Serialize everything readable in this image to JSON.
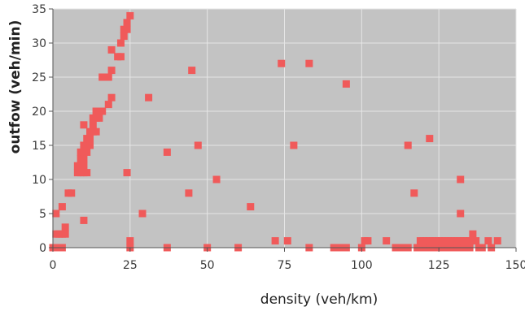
{
  "chart_data": {
    "type": "scatter",
    "xlabel": "density (veh/km)",
    "ylabel": "outfow (veh/min)",
    "xlim": [
      0,
      150
    ],
    "ylim": [
      0,
      35
    ],
    "xticks": [
      0,
      25,
      50,
      75,
      100,
      125,
      150
    ],
    "yticks": [
      0,
      5,
      10,
      15,
      20,
      25,
      30,
      35
    ],
    "grid": true,
    "colors": {
      "plot_bg": "#c3c3c3",
      "marker": "#f05a5a",
      "grid": "#e6e6e6"
    },
    "series": [
      {
        "points": [
          [
            0,
            0
          ],
          [
            1,
            0
          ],
          [
            2,
            0
          ],
          [
            3,
            0
          ],
          [
            1,
            2
          ],
          [
            2,
            2
          ],
          [
            3,
            2
          ],
          [
            4,
            2
          ],
          [
            4,
            3
          ],
          [
            1,
            5
          ],
          [
            3,
            6
          ],
          [
            5,
            8
          ],
          [
            6,
            8
          ],
          [
            10,
            4
          ],
          [
            8,
            11
          ],
          [
            9,
            11
          ],
          [
            10,
            11
          ],
          [
            11,
            11
          ],
          [
            8,
            12
          ],
          [
            9,
            12
          ],
          [
            10,
            12
          ],
          [
            9,
            13
          ],
          [
            10,
            13
          ],
          [
            9,
            14
          ],
          [
            10,
            14
          ],
          [
            11,
            14
          ],
          [
            10,
            15
          ],
          [
            11,
            15
          ],
          [
            12,
            15
          ],
          [
            11,
            16
          ],
          [
            12,
            16
          ],
          [
            12,
            17
          ],
          [
            13,
            17
          ],
          [
            14,
            17
          ],
          [
            10,
            18
          ],
          [
            13,
            18
          ],
          [
            13,
            19
          ],
          [
            14,
            19
          ],
          [
            15,
            19
          ],
          [
            14,
            20
          ],
          [
            15,
            20
          ],
          [
            16,
            20
          ],
          [
            18,
            21
          ],
          [
            19,
            22
          ],
          [
            16,
            25
          ],
          [
            17,
            25
          ],
          [
            18,
            25
          ],
          [
            19,
            26
          ],
          [
            21,
            28
          ],
          [
            22,
            28
          ],
          [
            19,
            29
          ],
          [
            22,
            30
          ],
          [
            23,
            31
          ],
          [
            23,
            32
          ],
          [
            24,
            32
          ],
          [
            24,
            33
          ],
          [
            25,
            34
          ],
          [
            25,
            0
          ],
          [
            25,
            1
          ],
          [
            24,
            11
          ],
          [
            29,
            5
          ],
          [
            31,
            22
          ],
          [
            37,
            0
          ],
          [
            37,
            14
          ],
          [
            44,
            8
          ],
          [
            45,
            26
          ],
          [
            47,
            15
          ],
          [
            50,
            0
          ],
          [
            53,
            10
          ],
          [
            60,
            0
          ],
          [
            64,
            6
          ],
          [
            72,
            1
          ],
          [
            74,
            27
          ],
          [
            76,
            1
          ],
          [
            78,
            15
          ],
          [
            83,
            0
          ],
          [
            83,
            27
          ],
          [
            91,
            0
          ],
          [
            93,
            0
          ],
          [
            95,
            0
          ],
          [
            95,
            24
          ],
          [
            100,
            0
          ],
          [
            101,
            1
          ],
          [
            102,
            1
          ],
          [
            108,
            1
          ],
          [
            111,
            0
          ],
          [
            113,
            0
          ],
          [
            115,
            0
          ],
          [
            115,
            15
          ],
          [
            117,
            8
          ],
          [
            118,
            0
          ],
          [
            119,
            0
          ],
          [
            120,
            0
          ],
          [
            121,
            0
          ],
          [
            119,
            1
          ],
          [
            120,
            1
          ],
          [
            121,
            1
          ],
          [
            122,
            16
          ],
          [
            122,
            0
          ],
          [
            123,
            0
          ],
          [
            124,
            0
          ],
          [
            125,
            0
          ],
          [
            126,
            0
          ],
          [
            127,
            0
          ],
          [
            122,
            1
          ],
          [
            123,
            1
          ],
          [
            124,
            1
          ],
          [
            125,
            1
          ],
          [
            126,
            1
          ],
          [
            127,
            1
          ],
          [
            128,
            0
          ],
          [
            129,
            0
          ],
          [
            130,
            0
          ],
          [
            131,
            0
          ],
          [
            128,
            1
          ],
          [
            129,
            1
          ],
          [
            130,
            1
          ],
          [
            131,
            1
          ],
          [
            132,
            1
          ],
          [
            132,
            10
          ],
          [
            132,
            5
          ],
          [
            133,
            0
          ],
          [
            134,
            0
          ],
          [
            135,
            0
          ],
          [
            133,
            1
          ],
          [
            134,
            1
          ],
          [
            135,
            1
          ],
          [
            136,
            2
          ],
          [
            137,
            1
          ],
          [
            138,
            0
          ],
          [
            139,
            0
          ],
          [
            141,
            1
          ],
          [
            142,
            0
          ],
          [
            144,
            1
          ]
        ]
      }
    ]
  }
}
